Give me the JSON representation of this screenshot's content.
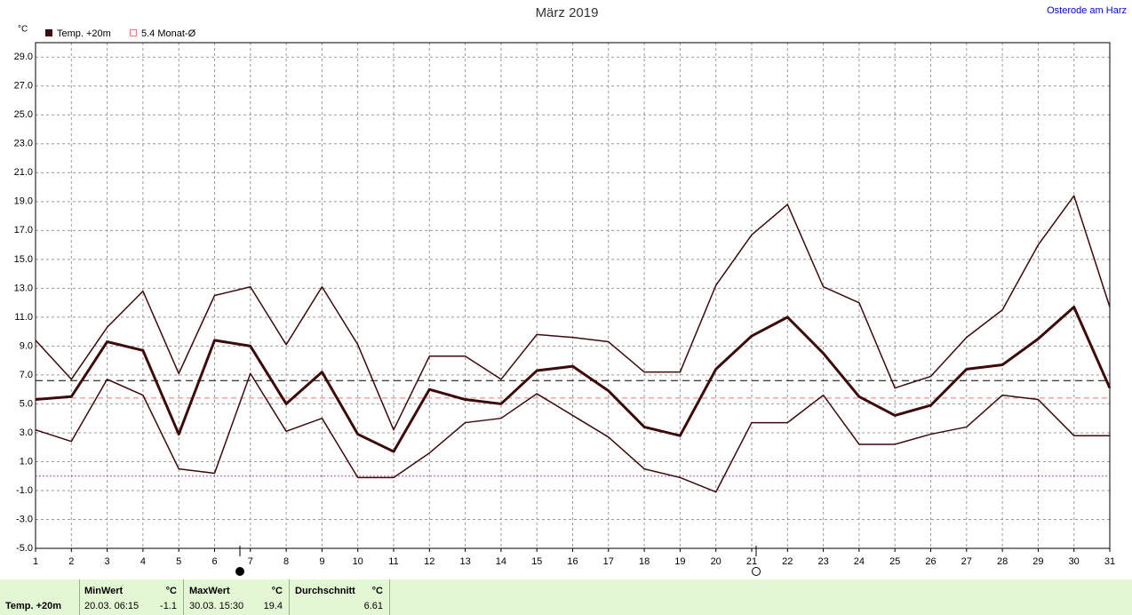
{
  "chart_data": {
    "type": "line",
    "title": "März 2019",
    "location": "Osterode am Harz",
    "unit": "°C",
    "legend": {
      "label": "Temp. +20m",
      "color": "#3c0a0a"
    },
    "reference_line": {
      "value": 5.4,
      "label": "5.4 Monat-Ø",
      "color": "#ff7070"
    },
    "zero_line": {
      "value": 0,
      "color": "#b040c0"
    },
    "average_line_color": "#000000",
    "x": [
      1,
      2,
      3,
      4,
      5,
      6,
      7,
      8,
      9,
      10,
      11,
      12,
      13,
      14,
      15,
      16,
      17,
      18,
      19,
      20,
      21,
      22,
      23,
      24,
      25,
      26,
      27,
      28,
      29,
      30,
      31
    ],
    "xlim": [
      1,
      31
    ],
    "xticks": [
      1,
      2,
      3,
      4,
      5,
      6,
      7,
      8,
      9,
      10,
      11,
      12,
      13,
      14,
      15,
      16,
      17,
      18,
      19,
      20,
      21,
      22,
      23,
      24,
      25,
      26,
      27,
      28,
      29,
      30,
      31
    ],
    "ylim": [
      -5,
      30
    ],
    "yticks": [
      {
        "value": -5,
        "label": "-5.0"
      },
      {
        "value": -3,
        "label": "-3.0"
      },
      {
        "value": -1,
        "label": "-1.0"
      },
      {
        "value": 1,
        "label": "1.0"
      },
      {
        "value": 3,
        "label": "3.0"
      },
      {
        "value": 5,
        "label": "5.0"
      },
      {
        "value": 7,
        "label": "7.0"
      },
      {
        "value": 9,
        "label": "9.0"
      },
      {
        "value": 11,
        "label": "11.0"
      },
      {
        "value": 13,
        "label": "13.0"
      },
      {
        "value": 15,
        "label": "15.0"
      },
      {
        "value": 17,
        "label": "17.0"
      },
      {
        "value": 19,
        "label": "19.0"
      },
      {
        "value": 21,
        "label": "21.0"
      },
      {
        "value": 23,
        "label": "23.0"
      },
      {
        "value": 25,
        "label": "25.0"
      },
      {
        "value": 27,
        "label": "27.0"
      },
      {
        "value": 29,
        "label": "29.0"
      }
    ],
    "grid": true,
    "series": [
      {
        "color": "#3c0a0a",
        "width": 3,
        "values": [
          5.3,
          5.5,
          9.3,
          8.7,
          2.9,
          9.4,
          9.0,
          5.0,
          7.2,
          2.9,
          1.7,
          6.0,
          5.3,
          5.0,
          7.3,
          7.6,
          5.9,
          3.4,
          2.8,
          7.4,
          9.7,
          11.0,
          8.5,
          5.5,
          4.2,
          4.9,
          7.4,
          7.7,
          9.5,
          11.7,
          6.1
        ]
      },
      {
        "color": "#3c0a0a",
        "width": 1.5,
        "values": [
          9.4,
          6.7,
          10.3,
          12.8,
          7.1,
          12.5,
          13.1,
          9.1,
          13.1,
          9.1,
          3.2,
          8.3,
          8.3,
          6.7,
          9.8,
          9.6,
          9.3,
          7.2,
          7.2,
          13.2,
          16.7,
          18.8,
          13.1,
          12.0,
          6.1,
          6.9,
          9.6,
          11.5,
          16.0,
          19.4,
          11.7
        ]
      },
      {
        "color": "#3c0a0a",
        "width": 1.5,
        "values": [
          3.2,
          2.4,
          6.7,
          5.6,
          0.5,
          0.2,
          7.1,
          3.1,
          4.0,
          -0.1,
          -0.1,
          1.6,
          3.7,
          4.0,
          5.7,
          4.2,
          2.7,
          0.5,
          -0.1,
          -1.1,
          3.7,
          3.7,
          5.6,
          2.2,
          2.2,
          2.9,
          3.4,
          5.6,
          5.3,
          2.8,
          2.8
        ]
      }
    ]
  },
  "footer": {
    "label": "Temp. +20m",
    "min": {
      "title": "MinWert",
      "unit": "°C",
      "time": "20.03.  06:15",
      "value": -1.1
    },
    "max": {
      "title": "MaxWert",
      "unit": "°C",
      "time": "30.03.  15:30",
      "value": 19.4
    },
    "avg": {
      "title": "Durchschnitt",
      "unit": "°C",
      "value": 6.61
    }
  }
}
